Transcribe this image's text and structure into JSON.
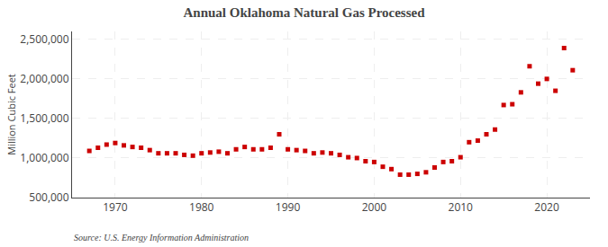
{
  "chart_data": {
    "type": "scatter",
    "title": "Annual Oklahoma Natural Gas Processed",
    "ylabel": "Million Cubic Feet",
    "annotations": [
      "Source: U.S. Energy Information Administration"
    ],
    "x": [
      1967,
      1968,
      1969,
      1970,
      1971,
      1972,
      1973,
      1974,
      1975,
      1976,
      1977,
      1978,
      1979,
      1980,
      1981,
      1982,
      1983,
      1984,
      1985,
      1986,
      1987,
      1988,
      1989,
      1990,
      1991,
      1992,
      1993,
      1994,
      1995,
      1996,
      1997,
      1998,
      1999,
      2000,
      2001,
      2002,
      2003,
      2004,
      2005,
      2006,
      2007,
      2008,
      2009,
      2010,
      2011,
      2012,
      2013,
      2014,
      2015,
      2016,
      2017,
      2018,
      2019,
      2020,
      2021,
      2022,
      2023
    ],
    "values": [
      1090000,
      1130000,
      1170000,
      1190000,
      1160000,
      1140000,
      1130000,
      1100000,
      1060000,
      1060000,
      1060000,
      1040000,
      1030000,
      1060000,
      1070000,
      1080000,
      1060000,
      1110000,
      1140000,
      1110000,
      1110000,
      1130000,
      1300000,
      1110000,
      1100000,
      1090000,
      1060000,
      1070000,
      1060000,
      1040000,
      1010000,
      1000000,
      960000,
      950000,
      890000,
      860000,
      790000,
      790000,
      800000,
      820000,
      880000,
      950000,
      960000,
      1010000,
      1200000,
      1220000,
      1300000,
      1360000,
      1670000,
      1680000,
      1830000,
      2160000,
      1940000,
      2000000,
      1850000,
      2390000,
      2110000
    ],
    "color": "#cc0000",
    "marker": "square",
    "xlim": [
      1965,
      2025
    ],
    "xticks": [
      1970,
      1980,
      1990,
      2000,
      2010,
      2020
    ],
    "ylim": [
      500000,
      2600000
    ],
    "yticks": [
      {
        "value": 500000,
        "label": "500,000"
      },
      {
        "value": 1000000,
        "label": "1,000,000"
      },
      {
        "value": 1500000,
        "label": "1,500,000"
      },
      {
        "value": 2000000,
        "label": "2,000,000"
      },
      {
        "value": 2500000,
        "label": "2,500,000"
      }
    ],
    "grid": true
  }
}
